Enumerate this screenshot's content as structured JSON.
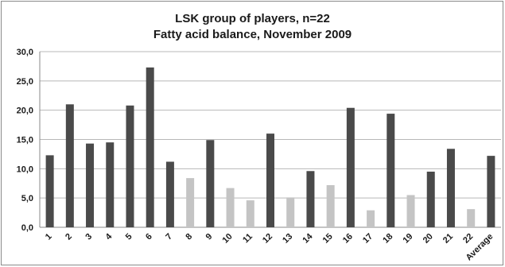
{
  "chart_data": {
    "type": "bar",
    "title": "LSK group of players, n=22",
    "subtitle": "Fatty acid balance, November 2009",
    "xlabel": "",
    "ylabel": "",
    "ylim": [
      0,
      30
    ],
    "yticks": [
      "0,0",
      "5,0",
      "10,0",
      "15,0",
      "20,0",
      "25,0",
      "30,0"
    ],
    "grid": true,
    "categories": [
      "1",
      "2",
      "3",
      "4",
      "5",
      "6",
      "7",
      "8",
      "9",
      "10",
      "11",
      "12",
      "13",
      "14",
      "15",
      "16",
      "17",
      "18",
      "19",
      "20",
      "21",
      "22",
      "Average"
    ],
    "values": [
      12.3,
      21.0,
      14.3,
      14.5,
      20.8,
      27.3,
      11.2,
      8.4,
      14.9,
      6.7,
      4.6,
      16.0,
      5.1,
      9.6,
      7.2,
      20.4,
      2.9,
      19.4,
      5.5,
      9.5,
      13.4,
      3.1,
      12.2
    ],
    "bar_colors": [
      "#4a4a4a",
      "#4a4a4a",
      "#4a4a4a",
      "#4a4a4a",
      "#4a4a4a",
      "#4a4a4a",
      "#4a4a4a",
      "#c4c4c4",
      "#4a4a4a",
      "#c4c4c4",
      "#c4c4c4",
      "#4a4a4a",
      "#c4c4c4",
      "#4a4a4a",
      "#c4c4c4",
      "#4a4a4a",
      "#c4c4c4",
      "#4a4a4a",
      "#c4c4c4",
      "#4a4a4a",
      "#4a4a4a",
      "#c4c4c4",
      "#4a4a4a"
    ]
  }
}
